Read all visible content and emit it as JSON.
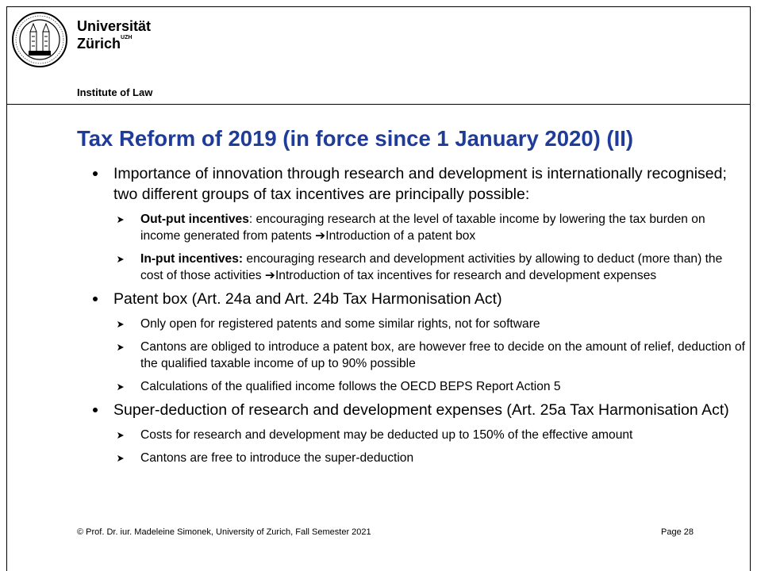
{
  "header": {
    "university_line1": "Universität",
    "university_line2": "Zürich",
    "uzh": "UZH",
    "institute": "Institute of Law"
  },
  "title": "Tax Reform of 2019 (in force since 1 January 2020) (II)",
  "bullets": [
    {
      "text": "Importance of innovation through research and development is internationally recognised; two different groups of tax incentives are principally possible:",
      "items": [
        {
          "bold": "Out-put incentives",
          "text": ": encouraging research at the level of taxable income by lowering the tax burden on income generated from patents ➔Introduction of a patent box"
        },
        {
          "bold": "In-put incentives:",
          "text": " encouraging research and development activities by allowing to deduct (more than) the cost of those activities ➔Introduction of tax incentives for research and development expenses"
        }
      ]
    },
    {
      "text": "Patent box (Art. 24a and Art. 24b Tax Harmonisation Act)",
      "items": [
        {
          "text": "Only open for registered patents and some similar rights, not for software"
        },
        {
          "text": "Cantons are obliged to introduce a patent box, are however free to decide on the amount of relief, deduction of the qualified taxable income of up to 90% possible"
        },
        {
          "text": "Calculations of the qualified income follows the OECD BEPS Report Action 5"
        }
      ]
    },
    {
      "text": "Super-deduction of research and development expenses (Art. 25a Tax Harmonisation Act)",
      "items": [
        {
          "text": "Costs for research and development may be deducted up to 150% of the effective amount"
        },
        {
          "text": "Cantons are free to introduce the super-deduction"
        }
      ]
    }
  ],
  "footer": {
    "copyright": "© Prof. Dr. iur. Madeleine Simonek, University of Zurich, Fall Semester 2021",
    "page": "Page 28"
  }
}
